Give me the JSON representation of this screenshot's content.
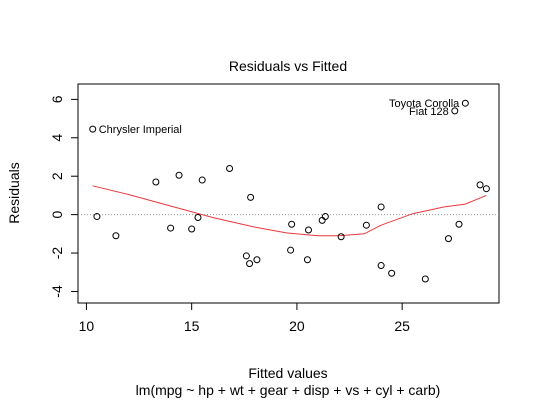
{
  "chart_data": {
    "type": "scatter",
    "title": "Residuals vs Fitted",
    "xlabel": "Fitted values",
    "ylabel": "Residuals",
    "subtitle": "lm(mpg ~ hp + wt + gear + disp + vs + cyl + carb)",
    "xlim": [
      9.6,
      29.6
    ],
    "ylim": [
      -4.6,
      6.8
    ],
    "xticks": [
      10,
      15,
      20,
      25
    ],
    "yticks": [
      -4,
      -2,
      0,
      2,
      4,
      6
    ],
    "grid": false,
    "reference_line": {
      "y": 0,
      "style": "dotted",
      "color": "#999999"
    },
    "smoother": {
      "color": "#e8393e",
      "x": [
        10.3,
        12,
        14,
        16,
        18,
        19.5,
        21,
        22,
        23.2,
        24,
        25.5,
        27,
        28,
        29
      ],
      "y": [
        1.5,
        1.05,
        0.45,
        -0.15,
        -0.65,
        -0.95,
        -1.1,
        -1.1,
        -1.0,
        -0.55,
        0.05,
        0.4,
        0.55,
        1.0
      ]
    },
    "points": [
      {
        "x": 10.3,
        "y": 4.45
      },
      {
        "x": 10.5,
        "y": -0.1
      },
      {
        "x": 11.4,
        "y": -1.1
      },
      {
        "x": 13.3,
        "y": 1.7
      },
      {
        "x": 14.0,
        "y": -0.7
      },
      {
        "x": 14.4,
        "y": 2.05
      },
      {
        "x": 15.0,
        "y": -0.75
      },
      {
        "x": 15.3,
        "y": -0.15
      },
      {
        "x": 15.5,
        "y": 1.8
      },
      {
        "x": 16.8,
        "y": 2.4
      },
      {
        "x": 17.6,
        "y": -2.15
      },
      {
        "x": 17.75,
        "y": -2.55
      },
      {
        "x": 17.8,
        "y": 0.9
      },
      {
        "x": 18.1,
        "y": -2.35
      },
      {
        "x": 19.7,
        "y": -1.85
      },
      {
        "x": 19.75,
        "y": -0.5
      },
      {
        "x": 20.5,
        "y": -2.35
      },
      {
        "x": 20.55,
        "y": -0.8
      },
      {
        "x": 21.2,
        "y": -0.3
      },
      {
        "x": 21.35,
        "y": -0.1
      },
      {
        "x": 22.1,
        "y": -1.15
      },
      {
        "x": 23.3,
        "y": -0.55
      },
      {
        "x": 24.0,
        "y": 0.4
      },
      {
        "x": 24.0,
        "y": -2.65
      },
      {
        "x": 24.5,
        "y": -3.05
      },
      {
        "x": 26.1,
        "y": -3.35
      },
      {
        "x": 27.2,
        "y": -1.25
      },
      {
        "x": 27.5,
        "y": 5.4
      },
      {
        "x": 27.7,
        "y": -0.5
      },
      {
        "x": 28.0,
        "y": 5.8
      },
      {
        "x": 28.7,
        "y": 1.55
      },
      {
        "x": 29.0,
        "y": 1.35
      }
    ],
    "annotations": [
      {
        "text": "Chrysler Imperial",
        "x": 10.3,
        "y": 4.45,
        "anchor": "start"
      },
      {
        "text": "Toyota Corolla",
        "x": 28.0,
        "y": 5.8,
        "anchor": "end"
      },
      {
        "text": "Fiat 128",
        "x": 27.5,
        "y": 5.4,
        "anchor": "end"
      }
    ]
  }
}
